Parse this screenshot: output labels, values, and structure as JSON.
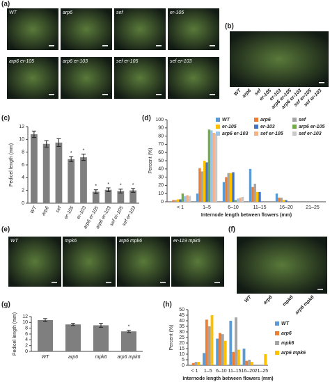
{
  "panels": [
    {
      "label": "(a)",
      "photos": [
        "WT",
        "arp6",
        "sef",
        "er-105",
        "arp6 er-105",
        "arp6 er-103",
        "sef er-105",
        "sef er-103"
      ]
    },
    {
      "label": "(b)",
      "labels": [
        "WT",
        "arp6",
        "sef",
        "er-105",
        "er-103",
        "arp6 er-105",
        "arp6 er-103",
        "sef er-105",
        "sef er-103"
      ]
    },
    {
      "label": "(c)"
    },
    {
      "label": "(d)"
    },
    {
      "label": "(e)",
      "photos": [
        "WT",
        "mpk6",
        "arp6 mpk6",
        "er-119 mpk6"
      ]
    },
    {
      "label": "(f)",
      "labels": [
        "WT",
        "arp6",
        "mpk6",
        "arp6 mpk6"
      ]
    },
    {
      "label": "(g)"
    },
    {
      "label": "(h)"
    }
  ],
  "chart_data": [
    {
      "type": "bar",
      "ylabel": "Pedicel length (mm)",
      "categories": [
        "WT",
        "arp6",
        "sef",
        "er-105",
        "er-103",
        "arp6 er-105",
        "arp6 er-103",
        "sef er-105",
        "sef er-103"
      ],
      "values": [
        10.8,
        9.3,
        9.5,
        6.9,
        7.2,
        1.8,
        2.1,
        1.9,
        2.0
      ],
      "errors": [
        0.5,
        0.5,
        0.6,
        0.4,
        0.5,
        0.3,
        0.3,
        0.3,
        0.3
      ],
      "markers": [
        null,
        null,
        null,
        "*",
        "*",
        "*",
        "*",
        "*",
        "*"
      ],
      "color": "#7f7f7f",
      "ylim": [
        0,
        12
      ],
      "yticks": [
        0,
        2,
        4,
        6,
        8,
        10,
        12
      ]
    },
    {
      "type": "bar",
      "ylabel": "Percent (%)",
      "xlabel": "Internode length between flowers (mm)",
      "legend": "top",
      "categories": [
        "< 1",
        "1–5",
        "6–10",
        "11–15",
        "16–20",
        "21–25"
      ],
      "series": [
        {
          "name": "WT",
          "color": "#5b9bd5",
          "values": [
            0,
            10,
            24,
            40,
            10,
            0
          ]
        },
        {
          "name": "arp6",
          "color": "#ed7d31",
          "values": [
            2,
            41,
            30,
            18,
            5,
            0
          ]
        },
        {
          "name": "sef",
          "color": "#a5a5a5",
          "values": [
            2,
            37,
            35,
            22,
            5,
            0
          ]
        },
        {
          "name": "er-105",
          "color": "#ffc000",
          "values": [
            3,
            50,
            35,
            12,
            2,
            0
          ]
        },
        {
          "name": "er-103",
          "color": "#4472c4",
          "values": [
            3,
            48,
            36,
            12,
            2,
            0
          ]
        },
        {
          "name": "arp6 er-105",
          "color": "#70ad47",
          "values": [
            10,
            88,
            2,
            0,
            0,
            0
          ]
        },
        {
          "name": "arp6 er-103",
          "color": "#9dc3e6",
          "values": [
            7,
            87,
            4,
            0,
            0,
            0
          ]
        },
        {
          "name": "sef er-105",
          "color": "#f4b183",
          "values": [
            8,
            84,
            5,
            0,
            0,
            0
          ]
        },
        {
          "name": "sef er-103",
          "color": "#c9c9c9",
          "values": [
            7,
            83,
            6,
            0,
            0,
            0
          ]
        }
      ],
      "ylim": [
        0,
        100
      ],
      "yticks": [
        0,
        10,
        20,
        30,
        40,
        50,
        60,
        70,
        80,
        90,
        100
      ]
    },
    {
      "type": "bar",
      "ylabel": "Pedicel length (mm)",
      "categories": [
        "WT",
        "arp6",
        "mpk6",
        "arp6 mpk6"
      ],
      "values": [
        10.8,
        9.3,
        9.0,
        6.9
      ],
      "errors": [
        0.5,
        0.4,
        0.7,
        0.4
      ],
      "markers": [
        null,
        null,
        null,
        "*"
      ],
      "color": "#7f7f7f",
      "ylim": [
        0,
        12
      ],
      "yticks": [
        0,
        2,
        4,
        6,
        8,
        10,
        12
      ]
    },
    {
      "type": "bar",
      "ylabel": "Percent (%)",
      "xlabel": "Internode length between flowers (mm)",
      "legend": "right",
      "categories": [
        "< 1",
        "1–5",
        "6–10",
        "11–15",
        "16–20",
        "21–25"
      ],
      "series": [
        {
          "name": "WT",
          "color": "#5b9bd5",
          "values": [
            0,
            11,
            24,
            40,
            15,
            0
          ]
        },
        {
          "name": "arp6",
          "color": "#ed7d31",
          "values": [
            2,
            41,
            29,
            12,
            4,
            0
          ]
        },
        {
          "name": "mpk6",
          "color": "#a5a5a5",
          "values": [
            3,
            35,
            28,
            43,
            5,
            0
          ]
        },
        {
          "name": "arp6 mpk6",
          "color": "#ffc000",
          "values": [
            3,
            45,
            22,
            14,
            3,
            10
          ]
        }
      ],
      "ylim": [
        0,
        50
      ],
      "yticks": [
        0,
        5,
        10,
        15,
        20,
        25,
        30,
        35,
        40,
        45,
        50
      ]
    }
  ]
}
